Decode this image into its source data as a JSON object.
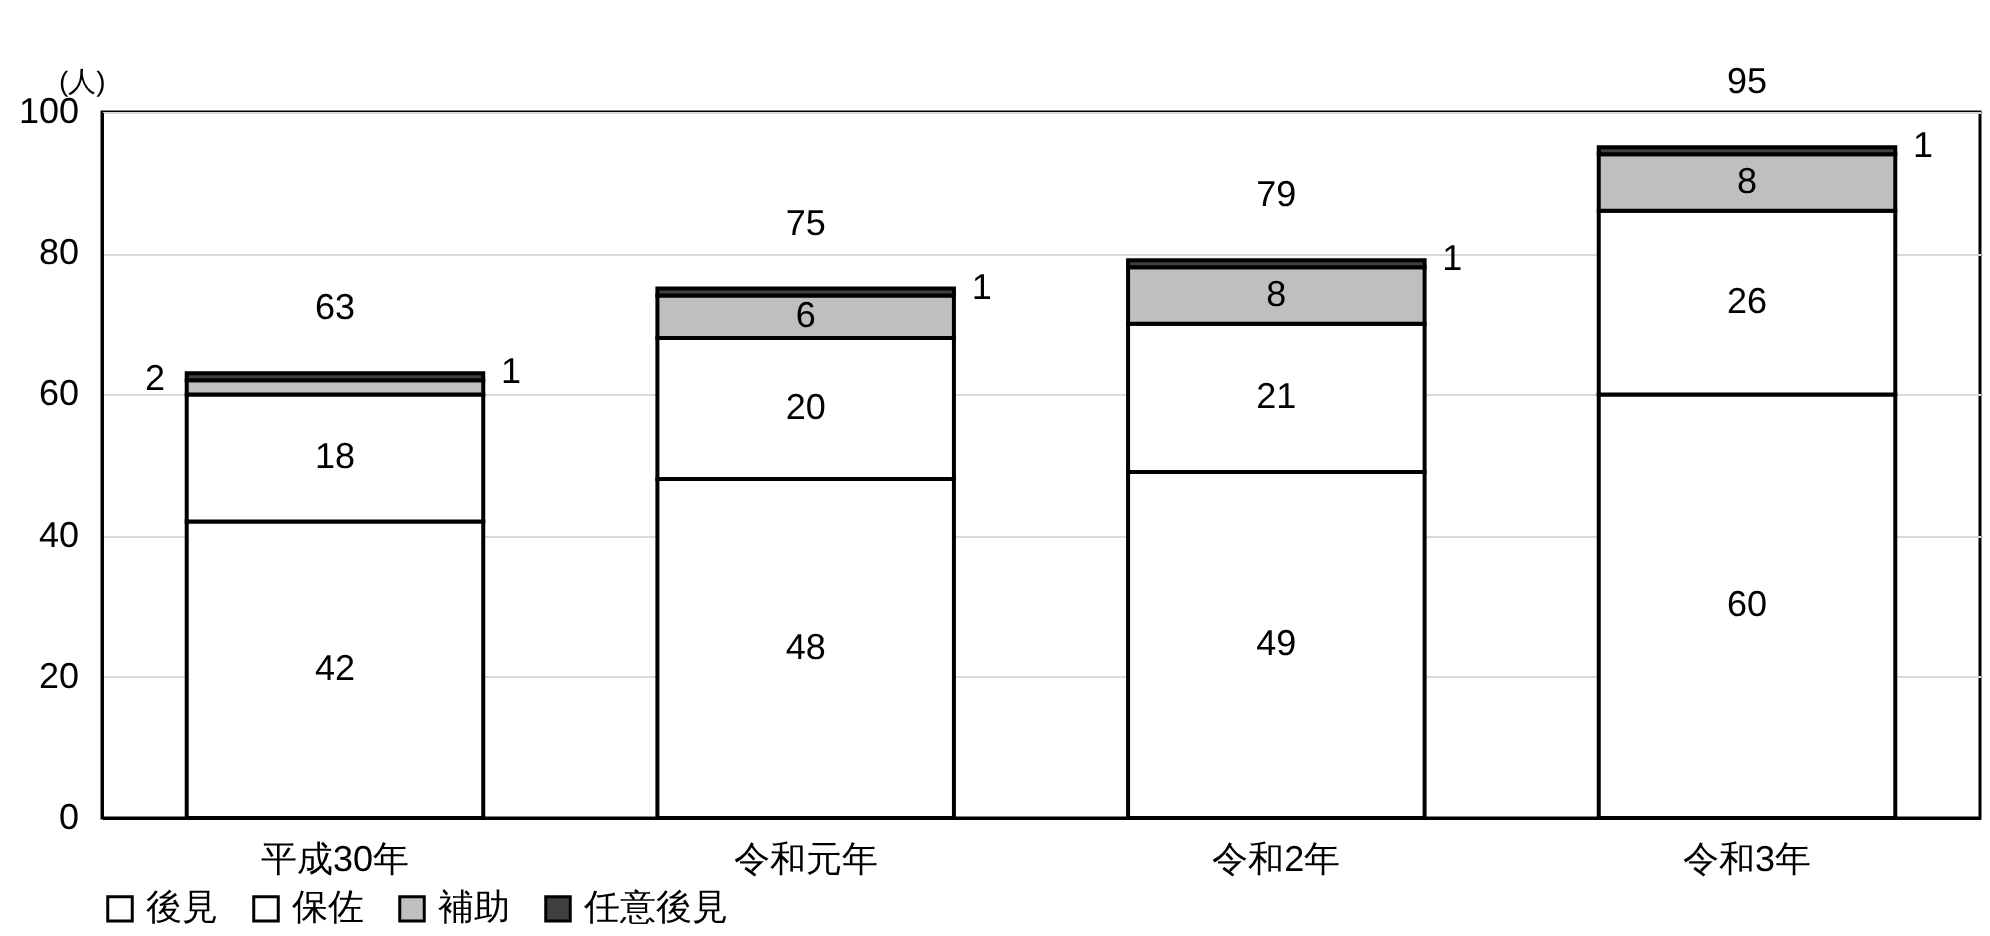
{
  "chart_data": {
    "type": "bar",
    "stacked": true,
    "ylabel": "(人)",
    "categories": [
      "平成30年",
      "令和元年",
      "令和2年",
      "令和3年"
    ],
    "series": [
      {
        "name": "後見",
        "color": "#ffffff",
        "values": [
          42,
          48,
          49,
          60
        ]
      },
      {
        "name": "保佐",
        "color": "#ffffff",
        "values": [
          18,
          20,
          21,
          26
        ]
      },
      {
        "name": "補助",
        "color": "#bfbfbf",
        "values": [
          2,
          6,
          8,
          8
        ]
      },
      {
        "name": "任意後見",
        "color": "#404040",
        "values": [
          1,
          1,
          1,
          1
        ]
      }
    ],
    "totals": [
      "63",
      "75",
      "79",
      "95"
    ],
    "ylim": [
      0,
      100
    ],
    "yticks": [
      0,
      20,
      40,
      60,
      80,
      100
    ],
    "grid": "y",
    "legend": "bottom",
    "data_labels": true
  }
}
